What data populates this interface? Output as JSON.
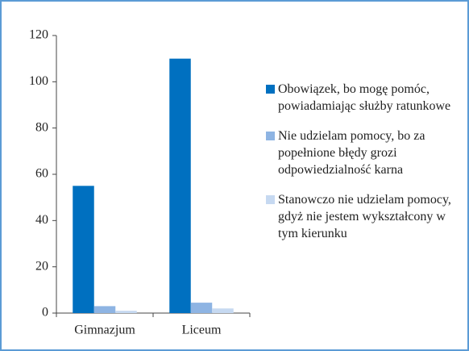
{
  "chart_data": {
    "type": "bar",
    "categories": [
      "Gimnazjum",
      "Liceum"
    ],
    "series": [
      {
        "name": "Obowiązek, bo mogę pomóc, powiadamiając służby ratunkowe",
        "color": "#0070c0",
        "values": [
          55,
          110
        ]
      },
      {
        "name": "Nie udzielam pomocy, bo za popełnione błędy grozi odpowiedzialność karna",
        "color": "#8eb4e3",
        "values": [
          3,
          4.5
        ]
      },
      {
        "name": "Stanowczo nie udzielam pomocy, gdyż nie jestem wykształcony w tym kierunku",
        "color": "#c6d9f1",
        "values": [
          1,
          2
        ]
      }
    ],
    "ylim": [
      0,
      120
    ],
    "yticks": [
      0,
      20,
      40,
      60,
      80,
      100,
      120
    ],
    "grid": false,
    "legend": "right"
  }
}
